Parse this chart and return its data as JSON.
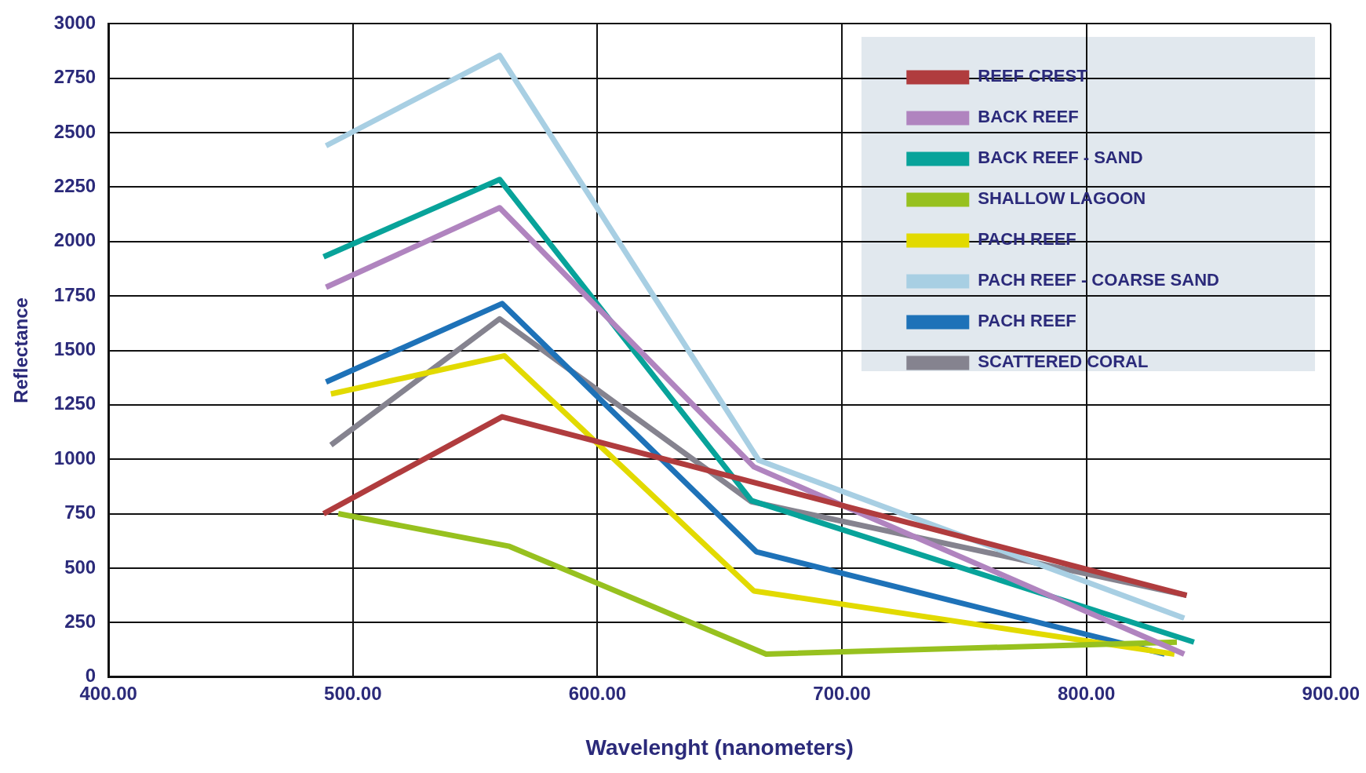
{
  "chart_data": {
    "type": "line",
    "xlabel": "Wavelenght (nanometers)",
    "ylabel": "Reflectance",
    "xlim": [
      400,
      900
    ],
    "xticks": [
      {
        "value": 400,
        "label": "400.00"
      },
      {
        "value": 500,
        "label": "500.00"
      },
      {
        "value": 600,
        "label": "600.00"
      },
      {
        "value": 700,
        "label": "700.00"
      },
      {
        "value": 800,
        "label": "800.00"
      },
      {
        "value": 900,
        "label": "900.00"
      }
    ],
    "ylim": [
      0,
      3000
    ],
    "yticks": [
      0,
      250,
      500,
      750,
      1000,
      1250,
      1500,
      1750,
      2000,
      2250,
      2500,
      2750,
      3000
    ],
    "grid": true,
    "legend": "top right",
    "marker": "none",
    "line_style": "solid",
    "series": [
      {
        "name": "REEF CREST",
        "color": "#b03c3e",
        "x": [
          488,
          561,
          841
        ],
        "values": [
          750,
          1195,
          375
        ]
      },
      {
        "name": "BACK REEF",
        "color": "#b084bf",
        "x": [
          489,
          560,
          664,
          840
        ],
        "values": [
          1790,
          2155,
          965,
          105
        ]
      },
      {
        "name": "BACK REEF - SAND",
        "color": "#08a39a",
        "x": [
          488,
          560,
          663,
          844
        ],
        "values": [
          1930,
          2285,
          810,
          160
        ]
      },
      {
        "name": "SHALLOW LAGOON",
        "color": "#97c11f",
        "x": [
          494,
          564,
          669,
          837
        ],
        "values": [
          750,
          600,
          105,
          160
        ]
      },
      {
        "name": "PACH REEF",
        "color": "#e2da00",
        "x": [
          491,
          562,
          664,
          836
        ],
        "values": [
          1300,
          1475,
          395,
          105
        ]
      },
      {
        "name": "PACH REEF - COARSE SAND",
        "color": "#a8cfe3",
        "x": [
          489,
          560,
          666,
          840
        ],
        "values": [
          2440,
          2855,
          995,
          270
        ]
      },
      {
        "name": "PACH REEF",
        "color": "#1e72b8",
        "x": [
          489,
          561,
          665,
          832
        ],
        "values": [
          1355,
          1715,
          575,
          105
        ]
      },
      {
        "name": "SCATTERED CORAL",
        "color": "#85838f",
        "x": [
          491,
          560,
          663,
          841
        ],
        "values": [
          1065,
          1645,
          805,
          375
        ]
      }
    ]
  }
}
